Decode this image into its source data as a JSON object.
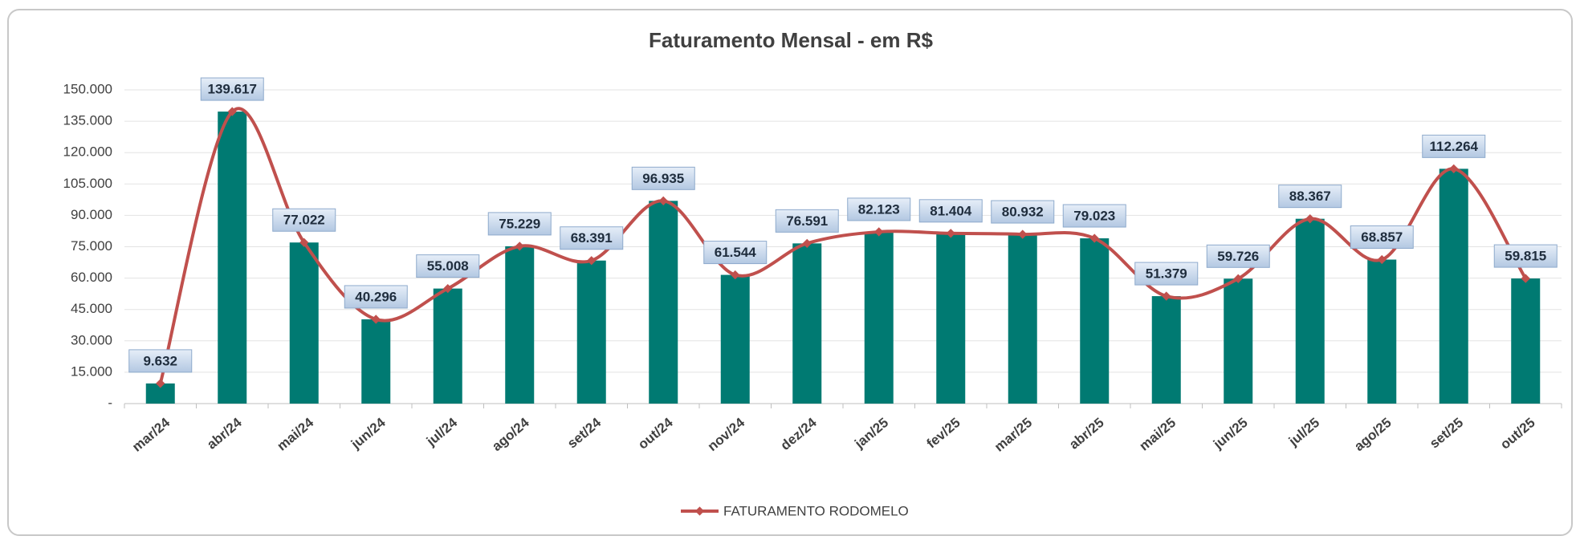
{
  "chart_data": {
    "type": "bar",
    "title": "Faturamento Mensal - em R$",
    "categories": [
      "mar/24",
      "abr/24",
      "mai/24",
      "jun/24",
      "jul/24",
      "ago/24",
      "set/24",
      "out/24",
      "nov/24",
      "dez/24",
      "jan/25",
      "fev/25",
      "mar/25",
      "abr/25",
      "mai/25",
      "jun/25",
      "jul/25",
      "ago/25",
      "set/25",
      "out/25"
    ],
    "series": [
      {
        "name": "FATURAMENTO RODOMELO",
        "color": "#c0504d",
        "bar_color": "#007a72",
        "values": [
          9632,
          139617,
          77022,
          40296,
          55008,
          75229,
          68391,
          96935,
          61544,
          76591,
          82123,
          81404,
          80932,
          79023,
          51379,
          59726,
          88367,
          68857,
          112264,
          59815
        ],
        "value_labels": [
          "9.632",
          "139.617",
          "77.022",
          "40.296",
          "55.008",
          "75.229",
          "68.391",
          "96.935",
          "61.544",
          "76.591",
          "82.123",
          "81.404",
          "80.932",
          "79.023",
          "51.379",
          "59.726",
          "88.367",
          "68.857",
          "112.264",
          "59.815"
        ]
      }
    ],
    "ylim": [
      0,
      150000
    ],
    "yticks": [
      {
        "value": 0,
        "label": "-"
      },
      {
        "value": 15000,
        "label": "15.000"
      },
      {
        "value": 30000,
        "label": "30.000"
      },
      {
        "value": 45000,
        "label": "45.000"
      },
      {
        "value": 60000,
        "label": "60.000"
      },
      {
        "value": 75000,
        "label": "75.000"
      },
      {
        "value": 90000,
        "label": "90.000"
      },
      {
        "value": 105000,
        "label": "105.000"
      },
      {
        "value": 120000,
        "label": "120.000"
      },
      {
        "value": 135000,
        "label": "135.000"
      },
      {
        "value": 150000,
        "label": "150.000"
      }
    ],
    "grid": true,
    "legend": "bottom"
  }
}
